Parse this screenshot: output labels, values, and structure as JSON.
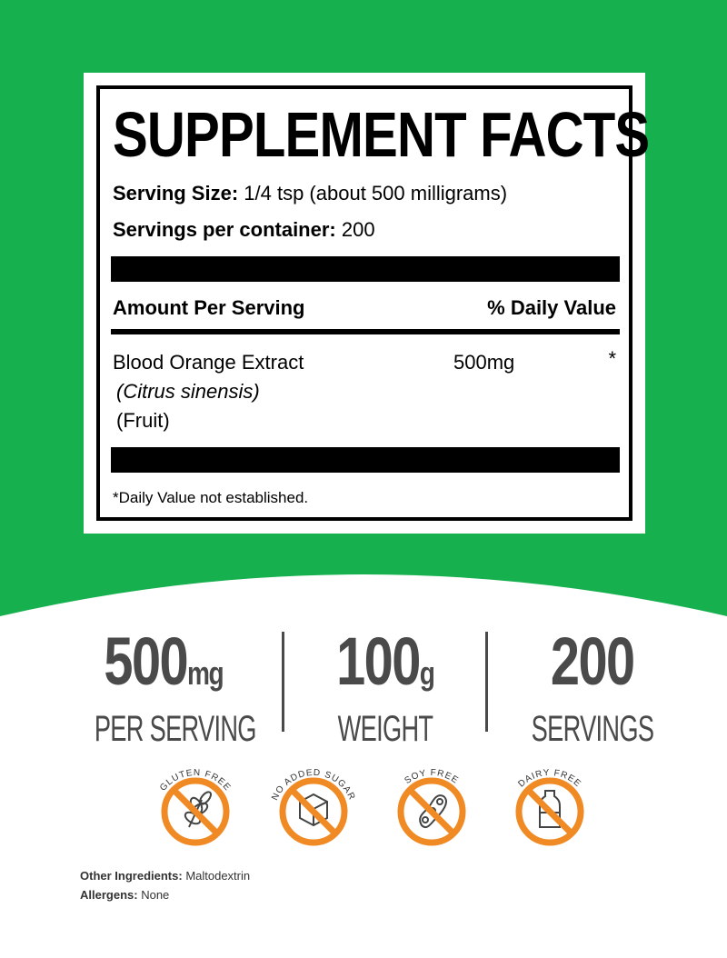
{
  "brand_color": "#17b04e",
  "accent_color": "#f08a24",
  "facts": {
    "title": "SUPPLEMENT FACTS",
    "serving_size_label": "Serving Size:",
    "serving_size_value": "1/4 tsp (about 500 milligrams)",
    "servings_label": "Servings per container:",
    "servings_value": "200",
    "amount_header": "Amount Per Serving",
    "dv_header": "% Daily Value",
    "ingredient": {
      "name": "Blood Orange Extract",
      "latin": "(Citrus sinensis)",
      "part": "(Fruit)",
      "amount": "500mg",
      "dv": "*"
    },
    "footnote": "*Daily Value not established."
  },
  "stats": [
    {
      "value": "500",
      "unit": "mg",
      "label": "PER SERVING"
    },
    {
      "value": "100",
      "unit": "g",
      "label": "WEIGHT"
    },
    {
      "value": "200",
      "unit": "",
      "label": "SERVINGS"
    }
  ],
  "badges": [
    {
      "label": "GLUTEN FREE",
      "icon": "wheat-icon"
    },
    {
      "label": "NO ADDED SUGAR",
      "icon": "sugar-cube-icon"
    },
    {
      "label": "SOY FREE",
      "icon": "soybean-icon"
    },
    {
      "label": "DAIRY FREE",
      "icon": "milk-bottle-icon"
    }
  ],
  "other_ingredients": {
    "label": "Other Ingredients:",
    "value": "Maltodextrin"
  },
  "allergens": {
    "label": "Allergens:",
    "value": "None"
  }
}
